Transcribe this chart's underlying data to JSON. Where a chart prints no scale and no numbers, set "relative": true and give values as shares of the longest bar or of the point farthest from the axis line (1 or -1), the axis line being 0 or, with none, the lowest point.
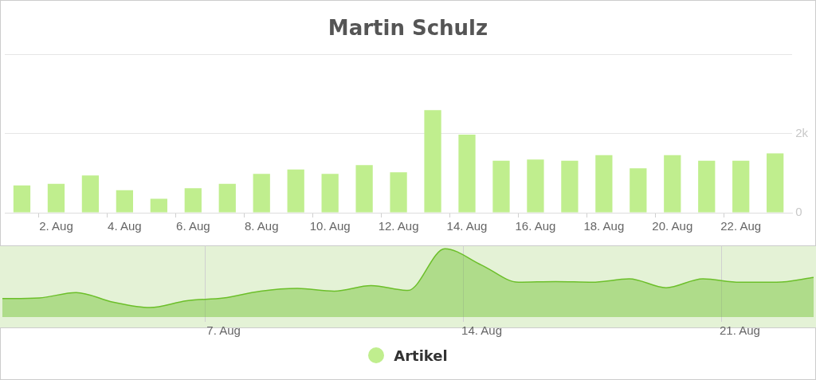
{
  "chart_data": [
    {
      "type": "bar",
      "title": "Martin Schulz",
      "categories": [
        null,
        "2. Aug",
        null,
        "4. Aug",
        null,
        "6. Aug",
        null,
        "8. Aug",
        null,
        "10. Aug",
        null,
        "12. Aug",
        null,
        "14. Aug",
        null,
        "16. Aug",
        null,
        "18. Aug",
        null,
        "20. Aug",
        null,
        "22. Aug",
        null
      ],
      "series": [
        {
          "name": "Artikel",
          "color": "#c0ee8e",
          "values": [
            690,
            730,
            940,
            570,
            350,
            620,
            730,
            980,
            1090,
            980,
            1200,
            1020,
            2590,
            1970,
            1310,
            1340,
            1310,
            1450,
            1120,
            1450,
            1310,
            1310,
            1500
          ]
        }
      ],
      "ylim": [
        0,
        4000
      ],
      "yticks": [
        0,
        {
          "value": 2000,
          "label": "2k"
        },
        {
          "value": 4000,
          "label": null
        }
      ],
      "grid": "y",
      "legend": "bottom"
    },
    {
      "type": "area",
      "relative": true,
      "grid": "x",
      "categories": [
        null,
        null,
        null,
        null,
        null,
        null,
        "7. Aug",
        null,
        null,
        null,
        null,
        null,
        null,
        "14. Aug",
        null,
        null,
        null,
        null,
        null,
        null,
        "21. Aug",
        null,
        null
      ],
      "series": [
        {
          "color": "#6cbf2a",
          "values": [
            0.27,
            0.28,
            0.36,
            0.22,
            0.14,
            0.24,
            0.28,
            0.38,
            0.42,
            0.38,
            0.46,
            0.39,
            1,
            0.76,
            0.51,
            0.52,
            0.51,
            0.56,
            0.43,
            0.56,
            0.51,
            0.51,
            0.58
          ]
        }
      ]
    }
  ]
}
